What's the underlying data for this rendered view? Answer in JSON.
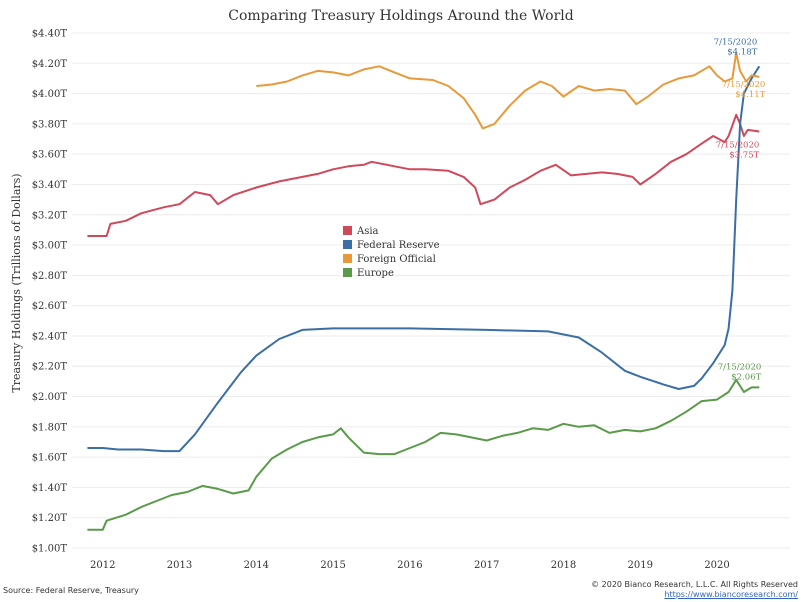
{
  "chart_data": {
    "type": "line",
    "title": "Comparing Treasury Holdings Around the World",
    "xlabel": "",
    "ylabel": "Treasury Holdings (Trillions of Dollars)",
    "ylim": [
      1.0,
      4.4
    ],
    "xlim": [
      2011.6,
      2020.95
    ],
    "y_ticks": [
      "$1.00T",
      "$1.20T",
      "$1.40T",
      "$1.60T",
      "$1.80T",
      "$2.00T",
      "$2.20T",
      "$2.40T",
      "$2.60T",
      "$2.80T",
      "$3.00T",
      "$3.20T",
      "$3.40T",
      "$3.60T",
      "$3.80T",
      "$4.00T",
      "$4.20T",
      "$4.40T"
    ],
    "x_ticks": [
      "2012",
      "2013",
      "2014",
      "2015",
      "2016",
      "2017",
      "2018",
      "2019",
      "2020"
    ],
    "grid": "horizontal",
    "legend_position": "center-left",
    "series": [
      {
        "name": "Asia",
        "color": "#d0495b",
        "end_label": "7/15/2020",
        "end_value": "$3.75T",
        "points": [
          [
            2011.8,
            3.06
          ],
          [
            2012.05,
            3.06
          ],
          [
            2012.1,
            3.14
          ],
          [
            2012.3,
            3.16
          ],
          [
            2012.5,
            3.21
          ],
          [
            2012.8,
            3.25
          ],
          [
            2013.0,
            3.27
          ],
          [
            2013.2,
            3.35
          ],
          [
            2013.4,
            3.33
          ],
          [
            2013.5,
            3.27
          ],
          [
            2013.7,
            3.33
          ],
          [
            2014.0,
            3.38
          ],
          [
            2014.3,
            3.42
          ],
          [
            2014.6,
            3.45
          ],
          [
            2014.8,
            3.47
          ],
          [
            2015.0,
            3.5
          ],
          [
            2015.2,
            3.52
          ],
          [
            2015.4,
            3.53
          ],
          [
            2015.5,
            3.55
          ],
          [
            2015.8,
            3.52
          ],
          [
            2016.0,
            3.5
          ],
          [
            2016.2,
            3.5
          ],
          [
            2016.5,
            3.49
          ],
          [
            2016.7,
            3.45
          ],
          [
            2016.85,
            3.38
          ],
          [
            2016.92,
            3.27
          ],
          [
            2017.1,
            3.3
          ],
          [
            2017.3,
            3.38
          ],
          [
            2017.5,
            3.43
          ],
          [
            2017.7,
            3.49
          ],
          [
            2017.9,
            3.53
          ],
          [
            2018.1,
            3.46
          ],
          [
            2018.3,
            3.47
          ],
          [
            2018.5,
            3.48
          ],
          [
            2018.7,
            3.47
          ],
          [
            2018.9,
            3.45
          ],
          [
            2019.0,
            3.4
          ],
          [
            2019.2,
            3.47
          ],
          [
            2019.4,
            3.55
          ],
          [
            2019.6,
            3.6
          ],
          [
            2019.8,
            3.67
          ],
          [
            2019.95,
            3.72
          ],
          [
            2020.1,
            3.68
          ],
          [
            2020.15,
            3.72
          ],
          [
            2020.25,
            3.86
          ],
          [
            2020.3,
            3.8
          ],
          [
            2020.35,
            3.72
          ],
          [
            2020.4,
            3.76
          ],
          [
            2020.55,
            3.75
          ]
        ]
      },
      {
        "name": "Federal Reserve",
        "color": "#3a6ea5",
        "end_label": "7/15/2020",
        "end_value": "$4.18T",
        "points": [
          [
            2011.8,
            1.66
          ],
          [
            2012.0,
            1.66
          ],
          [
            2012.2,
            1.65
          ],
          [
            2012.5,
            1.65
          ],
          [
            2012.8,
            1.64
          ],
          [
            2013.0,
            1.64
          ],
          [
            2013.2,
            1.75
          ],
          [
            2013.5,
            1.96
          ],
          [
            2013.8,
            2.16
          ],
          [
            2014.0,
            2.27
          ],
          [
            2014.3,
            2.38
          ],
          [
            2014.6,
            2.44
          ],
          [
            2015.0,
            2.45
          ],
          [
            2016.0,
            2.45
          ],
          [
            2017.0,
            2.44
          ],
          [
            2017.8,
            2.43
          ],
          [
            2018.2,
            2.39
          ],
          [
            2018.5,
            2.29
          ],
          [
            2018.8,
            2.17
          ],
          [
            2019.0,
            2.13
          ],
          [
            2019.3,
            2.08
          ],
          [
            2019.5,
            2.05
          ],
          [
            2019.7,
            2.07
          ],
          [
            2019.8,
            2.12
          ],
          [
            2019.95,
            2.22
          ],
          [
            2020.1,
            2.34
          ],
          [
            2020.15,
            2.45
          ],
          [
            2020.2,
            2.7
          ],
          [
            2020.25,
            3.3
          ],
          [
            2020.3,
            3.8
          ],
          [
            2020.35,
            4.0
          ],
          [
            2020.45,
            4.1
          ],
          [
            2020.55,
            4.18
          ]
        ]
      },
      {
        "name": "Foreign Official",
        "color": "#e89a3a",
        "end_label": "7/15/2020",
        "end_value": "$4.11T",
        "points": [
          [
            2014.0,
            4.05
          ],
          [
            2014.2,
            4.06
          ],
          [
            2014.4,
            4.08
          ],
          [
            2014.6,
            4.12
          ],
          [
            2014.8,
            4.15
          ],
          [
            2015.0,
            4.14
          ],
          [
            2015.2,
            4.12
          ],
          [
            2015.4,
            4.16
          ],
          [
            2015.6,
            4.18
          ],
          [
            2015.8,
            4.14
          ],
          [
            2016.0,
            4.1
          ],
          [
            2016.3,
            4.09
          ],
          [
            2016.5,
            4.05
          ],
          [
            2016.7,
            3.97
          ],
          [
            2016.85,
            3.86
          ],
          [
            2016.95,
            3.77
          ],
          [
            2017.1,
            3.8
          ],
          [
            2017.3,
            3.92
          ],
          [
            2017.5,
            4.02
          ],
          [
            2017.7,
            4.08
          ],
          [
            2017.85,
            4.05
          ],
          [
            2018.0,
            3.98
          ],
          [
            2018.2,
            4.05
          ],
          [
            2018.4,
            4.02
          ],
          [
            2018.6,
            4.03
          ],
          [
            2018.8,
            4.02
          ],
          [
            2018.95,
            3.93
          ],
          [
            2019.1,
            3.98
          ],
          [
            2019.3,
            4.06
          ],
          [
            2019.5,
            4.1
          ],
          [
            2019.7,
            4.12
          ],
          [
            2019.9,
            4.18
          ],
          [
            2020.0,
            4.12
          ],
          [
            2020.1,
            4.08
          ],
          [
            2020.2,
            4.1
          ],
          [
            2020.25,
            4.27
          ],
          [
            2020.3,
            4.15
          ],
          [
            2020.38,
            4.08
          ],
          [
            2020.45,
            4.12
          ],
          [
            2020.55,
            4.11
          ]
        ]
      },
      {
        "name": "Europe",
        "color": "#5a9a4a",
        "end_label": "7/15/2020",
        "end_value": "$2.06T",
        "points": [
          [
            2011.8,
            1.12
          ],
          [
            2012.0,
            1.12
          ],
          [
            2012.05,
            1.18
          ],
          [
            2012.3,
            1.22
          ],
          [
            2012.5,
            1.27
          ],
          [
            2012.7,
            1.31
          ],
          [
            2012.9,
            1.35
          ],
          [
            2013.1,
            1.37
          ],
          [
            2013.3,
            1.41
          ],
          [
            2013.5,
            1.39
          ],
          [
            2013.7,
            1.36
          ],
          [
            2013.9,
            1.38
          ],
          [
            2014.0,
            1.47
          ],
          [
            2014.2,
            1.59
          ],
          [
            2014.4,
            1.65
          ],
          [
            2014.6,
            1.7
          ],
          [
            2014.8,
            1.73
          ],
          [
            2015.0,
            1.75
          ],
          [
            2015.1,
            1.79
          ],
          [
            2015.2,
            1.73
          ],
          [
            2015.4,
            1.63
          ],
          [
            2015.6,
            1.62
          ],
          [
            2015.8,
            1.62
          ],
          [
            2016.0,
            1.66
          ],
          [
            2016.2,
            1.7
          ],
          [
            2016.4,
            1.76
          ],
          [
            2016.6,
            1.75
          ],
          [
            2016.8,
            1.73
          ],
          [
            2017.0,
            1.71
          ],
          [
            2017.2,
            1.74
          ],
          [
            2017.4,
            1.76
          ],
          [
            2017.6,
            1.79
          ],
          [
            2017.8,
            1.78
          ],
          [
            2018.0,
            1.82
          ],
          [
            2018.2,
            1.8
          ],
          [
            2018.4,
            1.81
          ],
          [
            2018.6,
            1.76
          ],
          [
            2018.8,
            1.78
          ],
          [
            2019.0,
            1.77
          ],
          [
            2019.2,
            1.79
          ],
          [
            2019.4,
            1.84
          ],
          [
            2019.6,
            1.9
          ],
          [
            2019.8,
            1.97
          ],
          [
            2020.0,
            1.98
          ],
          [
            2020.15,
            2.03
          ],
          [
            2020.25,
            2.11
          ],
          [
            2020.35,
            2.03
          ],
          [
            2020.45,
            2.06
          ],
          [
            2020.55,
            2.06
          ]
        ]
      }
    ]
  },
  "footer": {
    "source": "Source: Federal Reserve, Treasury",
    "copyright": "© 2020 Bianco Research, L.L.C. All Rights Reserved",
    "url": "https://www.biancoresearch.com/"
  }
}
